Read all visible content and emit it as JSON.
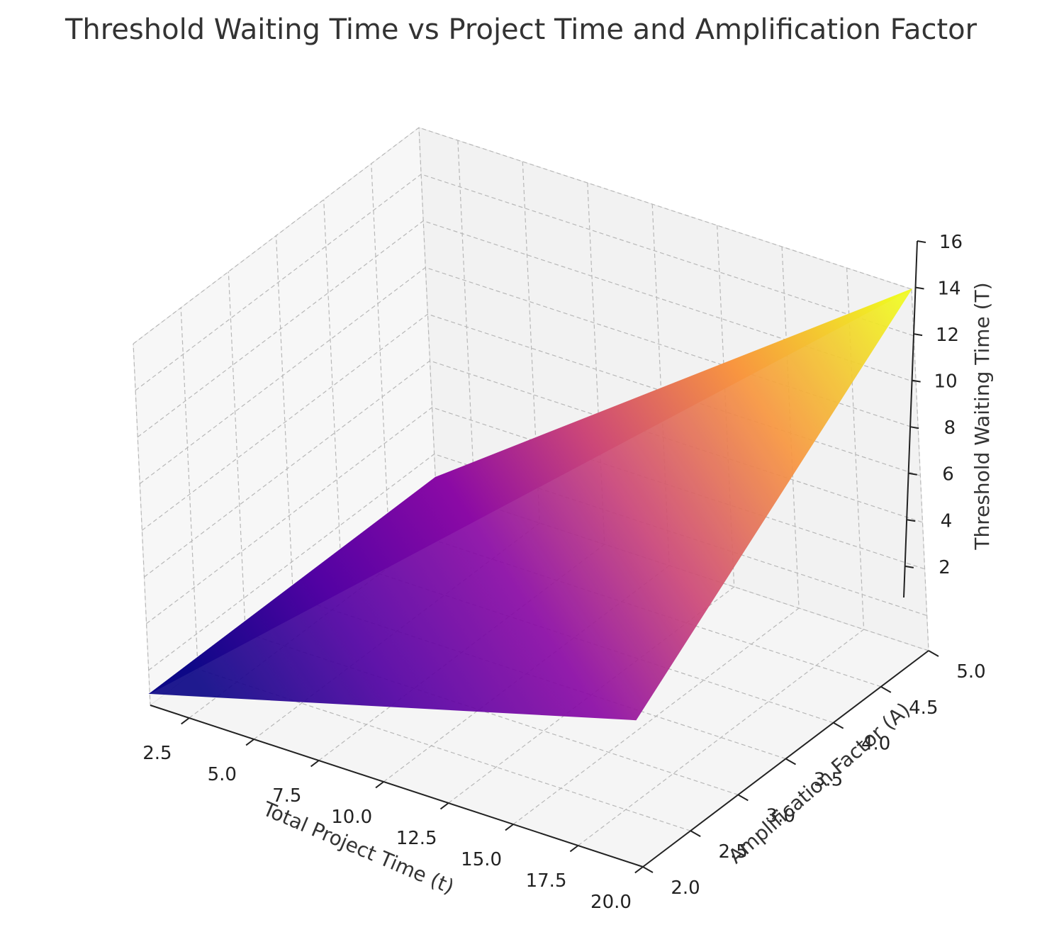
{
  "chart_data": {
    "type": "surface",
    "title": "Threshold Waiting Time vs Project Time and Amplification Factor",
    "xlabel": "Total Project Time (t)",
    "ylabel": "Amplification Factor (A)",
    "zlabel": "Threshold Waiting Time (T)",
    "xlim": [
      1,
      20
    ],
    "ylim": [
      2,
      5
    ],
    "zlim": [
      0.5,
      16
    ],
    "x_ticks": [
      "2.5",
      "5.0",
      "7.5",
      "10.0",
      "12.5",
      "15.0",
      "17.5",
      "20.0"
    ],
    "y_ticks": [
      "2.0",
      "2.5",
      "3.0",
      "3.5",
      "4.0",
      "4.5",
      "5.0"
    ],
    "z_ticks": [
      "2",
      "4",
      "6",
      "8",
      "10",
      "12",
      "14",
      "16"
    ],
    "grid": true,
    "colormap": [
      "#0d0887",
      "#6a00a8",
      "#b12a90",
      "#e16462",
      "#fca636",
      "#f0f921"
    ],
    "surface": {
      "x": [
        1,
        20
      ],
      "y": [
        2,
        5
      ],
      "z": [
        [
          1.0,
          1.0
        ],
        [
          6.8,
          16.0
        ]
      ]
    }
  }
}
